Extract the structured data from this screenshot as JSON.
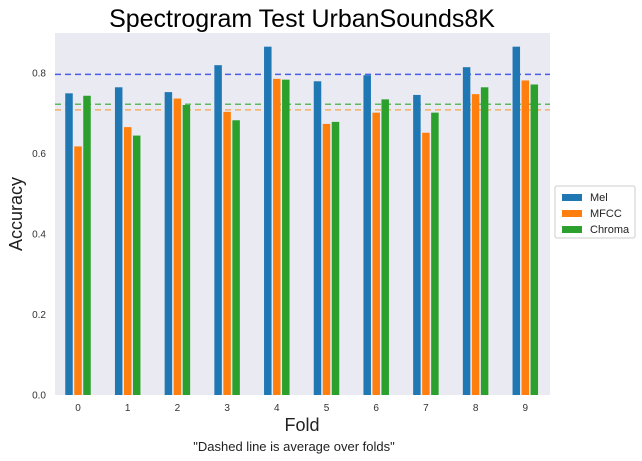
{
  "chart_data": {
    "type": "bar",
    "title": "Spectrogram Test UrbanSounds8K",
    "xlabel": "Fold",
    "ylabel": "Accuracy",
    "caption": "\"Dashed line is average over folds\"",
    "categories": [
      "0",
      "1",
      "2",
      "3",
      "4",
      "5",
      "6",
      "7",
      "8",
      "9"
    ],
    "ylim": [
      0,
      0.9
    ],
    "yticks": [
      "0.0",
      "0.2",
      "0.4",
      "0.6",
      "0.8"
    ],
    "grid": false,
    "legend_position": "center-right",
    "series": [
      {
        "name": "Mel",
        "color": "#1f77b4",
        "values": [
          0.75,
          0.765,
          0.753,
          0.82,
          0.866,
          0.78,
          0.795,
          0.746,
          0.815,
          0.866
        ]
      },
      {
        "name": "MFCC",
        "color": "#ff7f0e",
        "values": [
          0.618,
          0.666,
          0.737,
          0.704,
          0.786,
          0.674,
          0.702,
          0.652,
          0.748,
          0.782
        ]
      },
      {
        "name": "Chroma",
        "color": "#2ca02c",
        "values": [
          0.744,
          0.645,
          0.721,
          0.683,
          0.784,
          0.679,
          0.735,
          0.702,
          0.765,
          0.772
        ]
      }
    ],
    "averages": [
      {
        "series": "Mel",
        "value": 0.797,
        "color": "#4a5ee8"
      },
      {
        "series": "MFCC",
        "value": 0.709,
        "color": "#f5b06a"
      },
      {
        "series": "Chroma",
        "value": 0.723,
        "color": "#5fb85f"
      }
    ]
  }
}
